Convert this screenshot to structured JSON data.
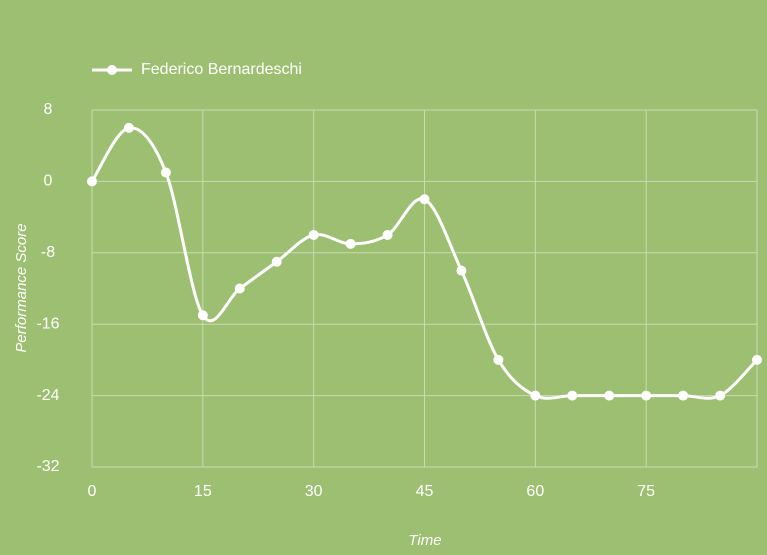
{
  "chart_data": {
    "type": "line",
    "x_label": "Time",
    "y_label": "Performance Score",
    "x": [
      0,
      5,
      10,
      15,
      20,
      25,
      30,
      35,
      40,
      45,
      50,
      55,
      60,
      65,
      70,
      75,
      80,
      85,
      90
    ],
    "series": [
      {
        "name": "Federico Bernardeschi",
        "color": "#ffffff",
        "values": [
          0,
          6,
          1,
          -15,
          -12,
          -9,
          -6,
          -7,
          -6,
          -2,
          -10,
          -20,
          -24,
          -24,
          -24,
          -24,
          -24,
          -24,
          -20
        ]
      }
    ],
    "xlim": [
      0,
      90
    ],
    "xticks": [
      0,
      15,
      30,
      45,
      60,
      75
    ],
    "ylim": [
      -32,
      8
    ],
    "yticks": [
      -32,
      -24,
      -16,
      -8,
      0,
      8
    ],
    "grid": true,
    "smooth": true,
    "legend": "top-left"
  }
}
